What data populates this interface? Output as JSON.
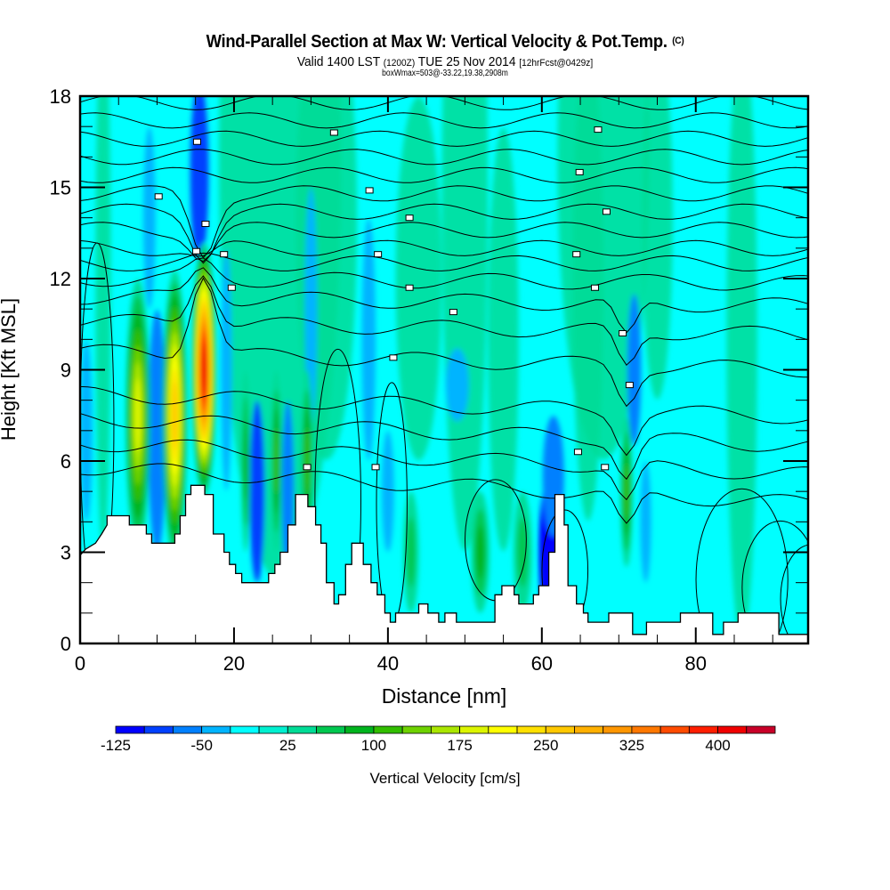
{
  "header": {
    "title": "Wind-Parallel Section at Max W: Vertical Velocity & Pot.Temp.",
    "copyright": "(C)",
    "valid_prefix": "Valid 1400 LST",
    "valid_utc": "(1200Z)",
    "valid_date": "TUE 25 Nov 2014",
    "forecast": "[12hrFcst@0429z]",
    "boxwmax": "boxWmax=503@-33.22,19.38,2908m"
  },
  "chart_data": {
    "type": "heatmap",
    "title": "Wind-Parallel Section at Max W: Vertical Velocity & Pot.Temp.",
    "xlabel": "Distance [nm]",
    "ylabel": "Height [Kft MSL]",
    "xlim": [
      0,
      94.6
    ],
    "ylim": [
      0,
      18
    ],
    "xticks": [
      "0",
      "20",
      "40",
      "60",
      "80"
    ],
    "xtick_values": [
      0,
      20,
      40,
      60,
      80
    ],
    "yticks": [
      "0",
      "3",
      "6",
      "9",
      "12",
      "15",
      "18"
    ],
    "ytick_values": [
      0,
      3,
      6,
      9,
      12,
      15,
      18
    ],
    "x_minor_step": 5,
    "y_minor_step": 1,
    "colorbar": {
      "label": "Vertical Velocity [cm/s]",
      "min": -125,
      "max": 450,
      "step": 25,
      "tick_labels": [
        "-125",
        "-50",
        "25",
        "100",
        "175",
        "250",
        "325",
        "400"
      ],
      "tick_values": [
        -125,
        -50,
        25,
        100,
        175,
        250,
        325,
        400
      ],
      "colors": [
        "#0000ff",
        "#0040ff",
        "#0080ff",
        "#00b4ff",
        "#00ffff",
        "#00f0d0",
        "#00dc96",
        "#00c850",
        "#00b41e",
        "#32be00",
        "#6ed200",
        "#aae600",
        "#dcf500",
        "#ffff00",
        "#ffe000",
        "#ffc800",
        "#ffb000",
        "#ff9600",
        "#ff7800",
        "#ff4b00",
        "#ff1e00",
        "#f00000",
        "#c80028"
      ]
    },
    "updrafts": [
      {
        "distance_nm": 7.5,
        "height_kft": 8.0,
        "w_cms": 175
      },
      {
        "distance_nm": 12.3,
        "height_kft": 7.5,
        "w_cms": 250
      },
      {
        "distance_nm": 16.1,
        "height_kft": 9.0,
        "w_cms": 400
      },
      {
        "distance_nm": 25.5,
        "height_kft": 6.0,
        "w_cms": 100
      },
      {
        "distance_nm": 29.5,
        "height_kft": 6.0,
        "w_cms": 100
      },
      {
        "distance_nm": 71.0,
        "height_kft": 5.0,
        "w_cms": 100
      }
    ],
    "downdrafts": [
      {
        "distance_nm": 10.0,
        "height_kft": 7.0,
        "w_cms": -75
      },
      {
        "distance_nm": 15.5,
        "height_kft": 15.0,
        "w_cms": -100
      },
      {
        "distance_nm": 23.0,
        "height_kft": 5.0,
        "w_cms": -100
      },
      {
        "distance_nm": 61.0,
        "height_kft": 3.0,
        "w_cms": -125
      },
      {
        "distance_nm": 72.0,
        "height_kft": 9.0,
        "w_cms": -75
      }
    ],
    "terrain_kft": [
      [
        0,
        2.9
      ],
      [
        0.7,
        3.1
      ],
      [
        2,
        3.3
      ],
      [
        2.8,
        3.6
      ],
      [
        3.5,
        3.9
      ],
      [
        3.5,
        4.2
      ],
      [
        6.4,
        4.2
      ],
      [
        6.4,
        3.9
      ],
      [
        8.6,
        3.9
      ],
      [
        8.6,
        3.6
      ],
      [
        9.3,
        3.6
      ],
      [
        9.3,
        3.3
      ],
      [
        12.3,
        3.3
      ],
      [
        12.3,
        3.6
      ],
      [
        13.0,
        3.6
      ],
      [
        13.0,
        4.2
      ],
      [
        13.7,
        4.2
      ],
      [
        13.7,
        4.9
      ],
      [
        14.4,
        4.9
      ],
      [
        14.4,
        5.2
      ],
      [
        16.2,
        5.2
      ],
      [
        16.2,
        4.9
      ],
      [
        17.3,
        4.9
      ],
      [
        17.3,
        3.6
      ],
      [
        18.7,
        3.6
      ],
      [
        18.7,
        3.0
      ],
      [
        19.4,
        3.0
      ],
      [
        19.4,
        2.6
      ],
      [
        20.2,
        2.6
      ],
      [
        20.2,
        2.3
      ],
      [
        21.0,
        2.3
      ],
      [
        21.0,
        2.0
      ],
      [
        24.5,
        2.0
      ],
      [
        24.5,
        2.3
      ],
      [
        25.3,
        2.3
      ],
      [
        25.3,
        2.6
      ],
      [
        26.0,
        2.6
      ],
      [
        26.0,
        3.0
      ],
      [
        27.0,
        3.0
      ],
      [
        27.0,
        3.9
      ],
      [
        28.0,
        3.9
      ],
      [
        28.0,
        4.9
      ],
      [
        29.6,
        4.9
      ],
      [
        29.6,
        4.5
      ],
      [
        30.6,
        4.5
      ],
      [
        30.6,
        3.9
      ],
      [
        31.3,
        3.9
      ],
      [
        31.3,
        3.3
      ],
      [
        32.0,
        3.3
      ],
      [
        32.0,
        2.0
      ],
      [
        33.0,
        2.0
      ],
      [
        33.0,
        1.3
      ],
      [
        33.6,
        1.3
      ],
      [
        33.6,
        1.6
      ],
      [
        34.5,
        1.6
      ],
      [
        34.5,
        2.6
      ],
      [
        35.3,
        2.6
      ],
      [
        35.3,
        3.3
      ],
      [
        36.8,
        3.3
      ],
      [
        36.8,
        2.6
      ],
      [
        37.8,
        2.6
      ],
      [
        37.8,
        2.0
      ],
      [
        38.6,
        2.0
      ],
      [
        38.6,
        1.6
      ],
      [
        39.6,
        1.6
      ],
      [
        39.6,
        1.0
      ],
      [
        40.3,
        1.0
      ],
      [
        40.3,
        0.7
      ],
      [
        41.0,
        0.7
      ],
      [
        41.0,
        1.0
      ],
      [
        44.0,
        1.0
      ],
      [
        44.0,
        1.3
      ],
      [
        45.2,
        1.3
      ],
      [
        45.2,
        1.0
      ],
      [
        46.6,
        1.0
      ],
      [
        46.6,
        0.7
      ],
      [
        47.4,
        0.7
      ],
      [
        47.4,
        1.0
      ],
      [
        48.9,
        1.0
      ],
      [
        48.9,
        0.7
      ],
      [
        53.9,
        0.7
      ],
      [
        53.9,
        1.6
      ],
      [
        54.8,
        1.6
      ],
      [
        54.8,
        1.9
      ],
      [
        56.4,
        1.9
      ],
      [
        56.4,
        1.6
      ],
      [
        57.0,
        1.6
      ],
      [
        57.0,
        1.3
      ],
      [
        58.9,
        1.3
      ],
      [
        58.9,
        1.6
      ],
      [
        59.6,
        1.6
      ],
      [
        59.6,
        1.9
      ],
      [
        60.9,
        1.9
      ],
      [
        60.9,
        3.0
      ],
      [
        61.7,
        3.0
      ],
      [
        61.7,
        4.9
      ],
      [
        62.9,
        4.9
      ],
      [
        62.9,
        3.9
      ],
      [
        63.4,
        3.9
      ],
      [
        63.4,
        1.9
      ],
      [
        64.5,
        1.9
      ],
      [
        64.5,
        1.3
      ],
      [
        65.4,
        1.3
      ],
      [
        65.4,
        1.0
      ],
      [
        66.0,
        1.0
      ],
      [
        66.0,
        0.7
      ],
      [
        68.7,
        0.7
      ],
      [
        68.7,
        1.0
      ],
      [
        71.8,
        1.0
      ],
      [
        71.8,
        0.3
      ],
      [
        73.6,
        0.3
      ],
      [
        73.6,
        0.7
      ],
      [
        78.0,
        0.7
      ],
      [
        78.0,
        1.0
      ],
      [
        82.2,
        1.0
      ],
      [
        82.2,
        0.3
      ],
      [
        83.6,
        0.3
      ],
      [
        83.6,
        0.7
      ],
      [
        85.5,
        0.7
      ],
      [
        85.5,
        1.0
      ],
      [
        90.8,
        1.0
      ],
      [
        90.8,
        0.3
      ],
      [
        94.6,
        0.3
      ]
    ]
  }
}
